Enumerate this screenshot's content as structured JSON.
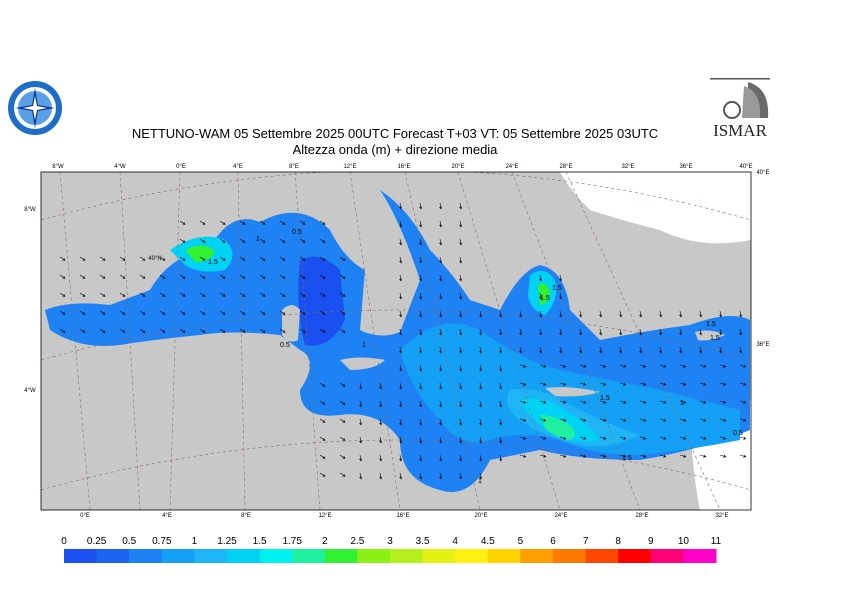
{
  "header": {
    "title_line1": "NETTUNO-WAM  05 Settembre 2025 00UTC Forecast T+03 VT: 05 Settembre 2025 03UTC",
    "title_line2": "Altezza onda (m) + direzione media"
  },
  "logos": {
    "right_text": "ISMAR"
  },
  "map": {
    "land_color": "#c8c8c8",
    "top_lon_labels": [
      "8°W",
      "4°W",
      "0°E",
      "4°E",
      "8°E",
      "12°E",
      "16°E",
      "20°E",
      "24°E",
      "28°E",
      "32°E",
      "36°E",
      "40°E"
    ],
    "bottom_lon_labels": [
      "0°E",
      "4°E",
      "8°E",
      "12°E",
      "16°E",
      "20°E",
      "24°E",
      "28°E",
      "32°E"
    ],
    "left_lat_labels": [
      "8°W",
      "4°W"
    ],
    "right_lat_labels": [
      "40°E",
      "36°E"
    ],
    "inner_label": "40°N",
    "contour_labels": [
      "1",
      "1.5",
      "0.5",
      "0.5",
      "1",
      "1.5",
      "1.5",
      "1.5",
      "1.5",
      "1",
      "0.5",
      "1.5",
      "1.5",
      "1"
    ]
  },
  "legend": {
    "labels": [
      "0",
      "0.25",
      "0.5",
      "0.75",
      "1",
      "1.25",
      "1.5",
      "1.75",
      "2",
      "2.5",
      "3",
      "3.5",
      "4",
      "4.5",
      "5",
      "6",
      "7",
      "8",
      "9",
      "10",
      "11"
    ],
    "colors": [
      "#1a50f0",
      "#1e64f2",
      "#1e82f5",
      "#14a0f5",
      "#1eb4f5",
      "#00d2f5",
      "#00f0f0",
      "#1ef0a0",
      "#32f032",
      "#8cf014",
      "#b4f01e",
      "#e6f014",
      "#fff014",
      "#ffd200",
      "#ffa000",
      "#ff7800",
      "#ff4600",
      "#ff0000",
      "#ff0078",
      "#ff00c8"
    ]
  }
}
